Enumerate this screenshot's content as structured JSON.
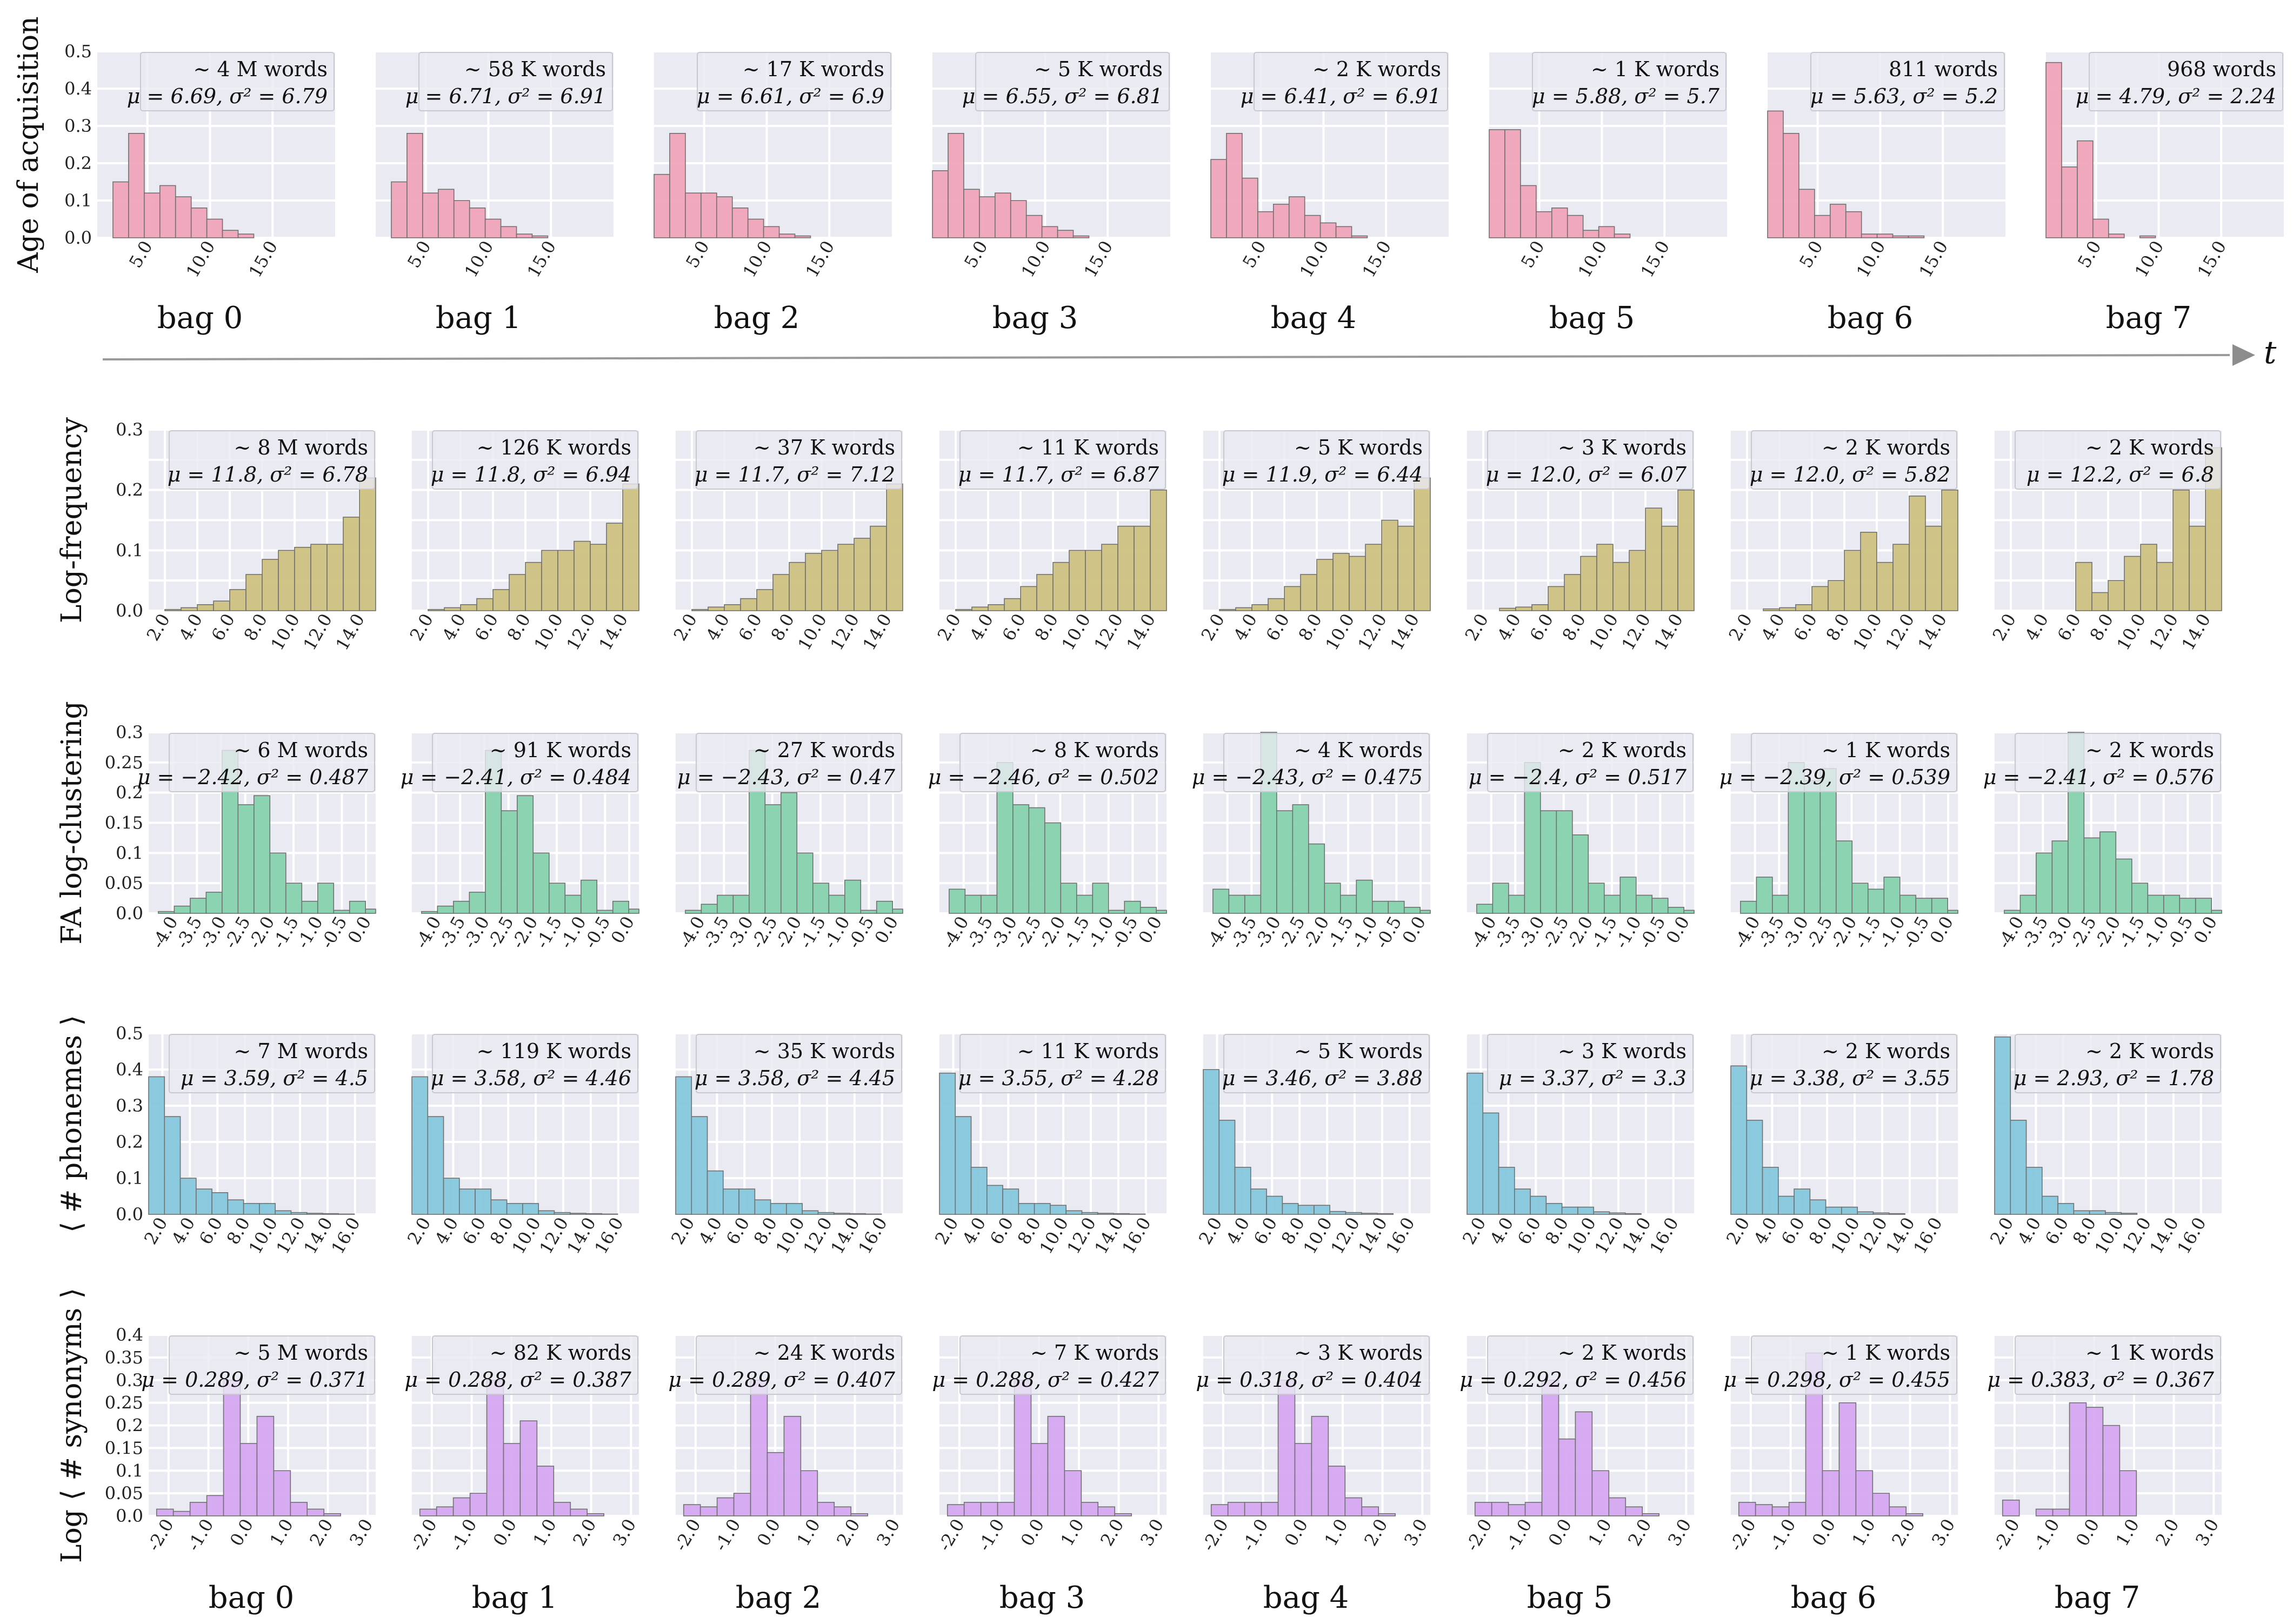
{
  "figure": {
    "time_axis_label": "t",
    "bag_labels_top": [
      "bag 0",
      "bag 1",
      "bag 2",
      "bag 3",
      "bag 4",
      "bag 5",
      "bag 6",
      "bag 7"
    ],
    "bag_labels_bottom": [
      "bag 0",
      "bag 1",
      "bag 2",
      "bag 3",
      "bag 4",
      "bag 5",
      "bag 6",
      "bag 7"
    ],
    "colors": {
      "age": "#f0a4b9",
      "freq": "#cdc181",
      "clust": "#86d2ad",
      "phon": "#86c8dc",
      "syn": "#d5a8f0",
      "panel_bg": "#eaeaf2",
      "grid": "#ffffff",
      "edge": "#707070"
    }
  },
  "chart_data": [
    {
      "type": "bar",
      "row": "age",
      "ylabel": "Age of acquisition",
      "ylim": [
        0,
        0.5
      ],
      "yticks": [
        0.0,
        0.1,
        0.2,
        0.3,
        0.4,
        0.5
      ],
      "ytick_labels": [
        "0.0",
        "0.1",
        "0.2",
        "0.3",
        "0.4",
        "0.5"
      ],
      "xlim": [
        1,
        20
      ],
      "xticks": [
        5,
        10,
        15
      ],
      "xtick_labels": [
        "5.0",
        "10.0",
        "15.0"
      ],
      "bin_start": 1,
      "bin_width": 1.25,
      "series": [
        {
          "count": "~ 4 M words",
          "stats": "μ = 6.69, σ² = 6.79",
          "values": [
            0.0,
            0.15,
            0.28,
            0.12,
            0.14,
            0.11,
            0.08,
            0.05,
            0.02,
            0.01,
            0.0,
            0.0,
            0.0,
            0.0,
            0.0
          ]
        },
        {
          "count": "~ 58 K words",
          "stats": "μ = 6.71, σ² = 6.91",
          "values": [
            0.0,
            0.15,
            0.28,
            0.12,
            0.13,
            0.1,
            0.08,
            0.05,
            0.03,
            0.01,
            0.005,
            0.0,
            0.0,
            0.0,
            0.0
          ]
        },
        {
          "count": "~ 17 K words",
          "stats": "μ = 6.61, σ² = 6.9",
          "values": [
            0.17,
            0.28,
            0.12,
            0.12,
            0.11,
            0.08,
            0.05,
            0.03,
            0.01,
            0.005,
            0.0,
            0.0,
            0.0,
            0.0,
            0.0
          ]
        },
        {
          "count": "~ 5 K words",
          "stats": "μ = 6.55, σ² = 6.81",
          "values": [
            0.18,
            0.28,
            0.13,
            0.11,
            0.12,
            0.1,
            0.06,
            0.03,
            0.02,
            0.005,
            0.0,
            0.0,
            0.0,
            0.0,
            0.0
          ]
        },
        {
          "count": "~ 2 K words",
          "stats": "μ = 6.41, σ² = 6.91",
          "values": [
            0.21,
            0.28,
            0.16,
            0.07,
            0.09,
            0.11,
            0.06,
            0.04,
            0.03,
            0.005,
            0.0,
            0.0,
            0.0,
            0.0,
            0.0
          ]
        },
        {
          "count": "~ 1 K words",
          "stats": "μ = 5.88, σ² = 5.7",
          "values": [
            0.29,
            0.29,
            0.14,
            0.07,
            0.08,
            0.06,
            0.02,
            0.03,
            0.01,
            0.0,
            0.0,
            0.0,
            0.0,
            0.0,
            0.0
          ]
        },
        {
          "count": "811 words",
          "stats": "μ = 5.63, σ² = 5.2",
          "values": [
            0.34,
            0.28,
            0.13,
            0.06,
            0.09,
            0.07,
            0.01,
            0.01,
            0.005,
            0.005,
            0.0,
            0.0,
            0.0,
            0.0,
            0.0
          ]
        },
        {
          "count": "968 words",
          "stats": "μ = 4.79, σ² = 2.24",
          "values": [
            0.47,
            0.19,
            0.26,
            0.05,
            0.01,
            0.0,
            0.005,
            0.0,
            0.0,
            0.0,
            0.0,
            0.0,
            0.0,
            0.0,
            0.0
          ]
        }
      ]
    },
    {
      "type": "bar",
      "row": "freq",
      "ylabel": "Log-frequency",
      "ylim": [
        0,
        0.3
      ],
      "yticks": [
        0.0,
        0.05,
        0.1,
        0.15,
        0.2,
        0.25,
        0.3
      ],
      "ytick_labels": [
        "0.0",
        "",
        "0.1",
        "",
        "0.2",
        "",
        "0.3"
      ],
      "xlim": [
        1,
        15
      ],
      "xticks": [
        2,
        4,
        6,
        8,
        10,
        12,
        14
      ],
      "xtick_labels": [
        "2.0",
        "4.0",
        "6.0",
        "8.0",
        "10.0",
        "12.0",
        "14.0"
      ],
      "bin_start": 1,
      "bin_width": 1,
      "series": [
        {
          "count": "~ 8 M words",
          "stats": "μ = 11.8, σ² = 6.78",
          "values": [
            0.0,
            0.002,
            0.005,
            0.01,
            0.016,
            0.035,
            0.06,
            0.085,
            0.1,
            0.105,
            0.11,
            0.11,
            0.155,
            0.22
          ]
        },
        {
          "count": "~ 126 K words",
          "stats": "μ = 11.8, σ² = 6.94",
          "values": [
            0.0,
            0.002,
            0.005,
            0.01,
            0.02,
            0.035,
            0.06,
            0.08,
            0.1,
            0.1,
            0.115,
            0.11,
            0.145,
            0.21
          ]
        },
        {
          "count": "~ 37 K words",
          "stats": "μ = 11.7, σ² = 7.12",
          "values": [
            0.0,
            0.002,
            0.006,
            0.01,
            0.02,
            0.035,
            0.06,
            0.08,
            0.095,
            0.1,
            0.11,
            0.12,
            0.14,
            0.21
          ]
        },
        {
          "count": "~ 11 K words",
          "stats": "μ = 11.7, σ² = 6.87",
          "values": [
            0.0,
            0.002,
            0.006,
            0.01,
            0.02,
            0.04,
            0.06,
            0.08,
            0.1,
            0.1,
            0.11,
            0.14,
            0.14,
            0.2
          ]
        },
        {
          "count": "~ 5 K words",
          "stats": "μ = 11.9, σ² = 6.44",
          "values": [
            0.0,
            0.002,
            0.005,
            0.01,
            0.02,
            0.04,
            0.06,
            0.085,
            0.095,
            0.09,
            0.11,
            0.15,
            0.14,
            0.22
          ]
        },
        {
          "count": "~ 3 K words",
          "stats": "μ = 12.0, σ² = 6.07",
          "values": [
            0.0,
            0.0,
            0.004,
            0.006,
            0.01,
            0.04,
            0.06,
            0.09,
            0.11,
            0.08,
            0.1,
            0.17,
            0.14,
            0.2
          ]
        },
        {
          "count": "~ 2 K words",
          "stats": "μ = 12.0, σ² = 5.82",
          "values": [
            0.0,
            0.0,
            0.003,
            0.005,
            0.01,
            0.04,
            0.05,
            0.1,
            0.13,
            0.08,
            0.11,
            0.19,
            0.14,
            0.2
          ]
        },
        {
          "count": "~ 2 K words",
          "stats": "μ = 12.2, σ² = 6.8",
          "values": [
            0.0,
            0.0,
            0.0,
            0.0,
            0.0,
            0.08,
            0.03,
            0.05,
            0.09,
            0.11,
            0.08,
            0.2,
            0.14,
            0.27
          ]
        }
      ]
    },
    {
      "type": "bar",
      "row": "clust",
      "ylabel": "FA log-clustering",
      "ylim": [
        0,
        0.3
      ],
      "yticks": [
        0.0,
        0.05,
        0.1,
        0.15,
        0.2,
        0.25,
        0.3
      ],
      "ytick_labels": [
        "0.0",
        "0.05",
        "0.1",
        "0.15",
        "0.2",
        "0.25",
        "0.3"
      ],
      "xlim": [
        -4.5,
        0.2
      ],
      "xticks": [
        -4.0,
        -3.5,
        -3.0,
        -2.5,
        -2.0,
        -1.5,
        -1.0,
        -0.5,
        0.0
      ],
      "xtick_labels": [
        "-4.0",
        "-3.5",
        "-3.0",
        "-2.5",
        "-2.0",
        "-1.5",
        "-1.0",
        "-0.5",
        "0.0"
      ],
      "bin_start": -4.3,
      "bin_width": 0.33,
      "series": [
        {
          "count": "~ 6 M words",
          "stats": "μ = −2.42, σ² = 0.487",
          "values": [
            0.003,
            0.012,
            0.025,
            0.035,
            0.27,
            0.18,
            0.195,
            0.1,
            0.05,
            0.02,
            0.05,
            0.005,
            0.02,
            0.007
          ]
        },
        {
          "count": "~ 91 K words",
          "stats": "μ = −2.41, σ² = 0.484",
          "values": [
            0.003,
            0.012,
            0.02,
            0.035,
            0.27,
            0.17,
            0.195,
            0.1,
            0.05,
            0.03,
            0.055,
            0.005,
            0.02,
            0.007
          ]
        },
        {
          "count": "~ 27 K words",
          "stats": "μ = −2.43, σ² = 0.47",
          "values": [
            0.005,
            0.015,
            0.03,
            0.03,
            0.27,
            0.18,
            0.2,
            0.1,
            0.05,
            0.03,
            0.055,
            0.005,
            0.02,
            0.007
          ]
        },
        {
          "count": "~ 8 K words",
          "stats": "μ = −2.46, σ² = 0.502",
          "values": [
            0.04,
            0.03,
            0.03,
            0.25,
            0.18,
            0.175,
            0.15,
            0.05,
            0.03,
            0.05,
            0.005,
            0.02,
            0.01,
            0.005
          ]
        },
        {
          "count": "~ 4 K words",
          "stats": "μ = −2.43, σ² = 0.475",
          "values": [
            0.04,
            0.03,
            0.03,
            0.3,
            0.17,
            0.18,
            0.115,
            0.05,
            0.03,
            0.055,
            0.02,
            0.02,
            0.01,
            0.005
          ]
        },
        {
          "count": "~ 2 K words",
          "stats": "μ = −2.4, σ² = 0.517",
          "values": [
            0.015,
            0.05,
            0.03,
            0.25,
            0.17,
            0.17,
            0.13,
            0.05,
            0.03,
            0.06,
            0.03,
            0.025,
            0.01,
            0.005
          ]
        },
        {
          "count": "~ 1 K words",
          "stats": "μ = −2.39, σ² = 0.539",
          "values": [
            0.02,
            0.06,
            0.03,
            0.25,
            0.22,
            0.24,
            0.12,
            0.05,
            0.04,
            0.06,
            0.03,
            0.025,
            0.025,
            0.005
          ]
        },
        {
          "count": "~ 2 K words",
          "stats": "μ = −2.41, σ² = 0.576",
          "values": [
            0.005,
            0.03,
            0.1,
            0.12,
            0.3,
            0.125,
            0.135,
            0.09,
            0.05,
            0.03,
            0.03,
            0.025,
            0.025,
            0.005
          ]
        }
      ]
    },
    {
      "type": "bar",
      "row": "phon",
      "ylabel": "⟨ # phonemes ⟩",
      "ylim": [
        0,
        0.5
      ],
      "yticks": [
        0.0,
        0.1,
        0.2,
        0.3,
        0.4,
        0.5
      ],
      "ytick_labels": [
        "0.0",
        "0.1",
        "0.2",
        "0.3",
        "0.4",
        "0.5"
      ],
      "xlim": [
        1,
        17.5
      ],
      "xticks": [
        2,
        4,
        6,
        8,
        10,
        12,
        14,
        16
      ],
      "xtick_labels": [
        "2.0",
        "4.0",
        "6.0",
        "8.0",
        "10.0",
        "12.0",
        "14.0",
        "16.0"
      ],
      "bin_start": 1,
      "bin_width": 1.15,
      "series": [
        {
          "count": "~ 7 M words",
          "stats": "μ = 3.59, σ² = 4.5",
          "values": [
            0.38,
            0.27,
            0.1,
            0.07,
            0.06,
            0.04,
            0.03,
            0.03,
            0.01,
            0.005,
            0.003,
            0.002,
            0.001,
            0.0
          ]
        },
        {
          "count": "~ 119 K words",
          "stats": "μ = 3.58, σ² = 4.46",
          "values": [
            0.38,
            0.27,
            0.1,
            0.07,
            0.07,
            0.04,
            0.03,
            0.03,
            0.01,
            0.005,
            0.003,
            0.002,
            0.001,
            0.0
          ]
        },
        {
          "count": "~ 35 K words",
          "stats": "μ = 3.58, σ² = 4.45",
          "values": [
            0.38,
            0.27,
            0.12,
            0.07,
            0.07,
            0.04,
            0.03,
            0.03,
            0.01,
            0.005,
            0.003,
            0.002,
            0.001,
            0.0
          ]
        },
        {
          "count": "~ 11 K words",
          "stats": "μ = 3.55, σ² = 4.28",
          "values": [
            0.39,
            0.27,
            0.13,
            0.08,
            0.07,
            0.03,
            0.03,
            0.025,
            0.01,
            0.005,
            0.003,
            0.002,
            0.001,
            0.0
          ]
        },
        {
          "count": "~ 5 K words",
          "stats": "μ = 3.46, σ² = 3.88",
          "values": [
            0.4,
            0.26,
            0.13,
            0.07,
            0.05,
            0.03,
            0.025,
            0.025,
            0.008,
            0.005,
            0.003,
            0.002,
            0.0,
            0.0
          ]
        },
        {
          "count": "~ 3 K words",
          "stats": "μ = 3.37, σ² = 3.3",
          "values": [
            0.39,
            0.28,
            0.13,
            0.07,
            0.05,
            0.03,
            0.02,
            0.02,
            0.007,
            0.004,
            0.002,
            0.0,
            0.0,
            0.0
          ]
        },
        {
          "count": "~ 2 K words",
          "stats": "μ = 3.38, σ² = 3.55",
          "values": [
            0.41,
            0.26,
            0.13,
            0.05,
            0.07,
            0.04,
            0.02,
            0.02,
            0.007,
            0.004,
            0.002,
            0.0,
            0.0,
            0.0
          ]
        },
        {
          "count": "~ 2 K words",
          "stats": "μ = 2.93, σ² = 1.78",
          "values": [
            0.49,
            0.26,
            0.13,
            0.05,
            0.03,
            0.01,
            0.01,
            0.005,
            0.003,
            0.0,
            0.0,
            0.0,
            0.0,
            0.0
          ]
        }
      ]
    },
    {
      "type": "bar",
      "row": "syn",
      "ylabel": "Log ⟨ # synonyms ⟩",
      "ylim": [
        0,
        0.4
      ],
      "yticks": [
        0.0,
        0.05,
        0.1,
        0.15,
        0.2,
        0.25,
        0.3,
        0.35,
        0.4
      ],
      "ytick_labels": [
        "0.0",
        "0.05",
        "0.1",
        "0.15",
        "0.2",
        "0.25",
        "0.3",
        "0.35",
        "0.4"
      ],
      "xlim": [
        -2.5,
        3.2
      ],
      "xticks": [
        -2,
        -1,
        0,
        1,
        2,
        3
      ],
      "xtick_labels": [
        "-2.0",
        "-1.0",
        "0.0",
        "1.0",
        "2.0",
        "3.0"
      ],
      "bin_start": -2.3,
      "bin_width": 0.42,
      "series": [
        {
          "count": "~ 5 M words",
          "stats": "μ = 0.289, σ² = 0.371",
          "values": [
            0.015,
            0.01,
            0.03,
            0.045,
            0.3,
            0.16,
            0.22,
            0.1,
            0.03,
            0.015,
            0.005,
            0.0,
            0.0,
            0.0
          ]
        },
        {
          "count": "~ 82 K words",
          "stats": "μ = 0.288, σ² = 0.387",
          "values": [
            0.015,
            0.02,
            0.04,
            0.05,
            0.3,
            0.16,
            0.21,
            0.11,
            0.03,
            0.015,
            0.005,
            0.0,
            0.0,
            0.0
          ]
        },
        {
          "count": "~ 24 K words",
          "stats": "μ = 0.289, σ² = 0.407",
          "values": [
            0.025,
            0.02,
            0.04,
            0.05,
            0.3,
            0.14,
            0.22,
            0.1,
            0.03,
            0.02,
            0.005,
            0.0,
            0.0,
            0.0
          ]
        },
        {
          "count": "~ 7 K words",
          "stats": "μ = 0.288, σ² = 0.427",
          "values": [
            0.025,
            0.03,
            0.03,
            0.03,
            0.3,
            0.16,
            0.22,
            0.1,
            0.03,
            0.02,
            0.005,
            0.0,
            0.0,
            0.0
          ]
        },
        {
          "count": "~ 3 K words",
          "stats": "μ = 0.318, σ² = 0.404",
          "values": [
            0.025,
            0.03,
            0.03,
            0.03,
            0.3,
            0.16,
            0.22,
            0.11,
            0.04,
            0.02,
            0.005,
            0.0,
            0.0,
            0.0
          ]
        },
        {
          "count": "~ 2 K words",
          "stats": "μ = 0.292, σ² = 0.456",
          "values": [
            0.03,
            0.03,
            0.025,
            0.03,
            0.3,
            0.17,
            0.23,
            0.1,
            0.04,
            0.02,
            0.005,
            0.0,
            0.0,
            0.0
          ]
        },
        {
          "count": "~ 1 K words",
          "stats": "μ = 0.298, σ² = 0.455",
          "values": [
            0.03,
            0.025,
            0.02,
            0.03,
            0.36,
            0.1,
            0.25,
            0.1,
            0.05,
            0.02,
            0.005,
            0.0,
            0.0,
            0.0
          ]
        },
        {
          "count": "~ 1 K words",
          "stats": "μ = 0.383, σ² = 0.367",
          "values": [
            0.035,
            0.0,
            0.015,
            0.015,
            0.25,
            0.24,
            0.2,
            0.1,
            0.0,
            0.0,
            0.0,
            0.0,
            0.0,
            0.0
          ]
        }
      ]
    }
  ]
}
